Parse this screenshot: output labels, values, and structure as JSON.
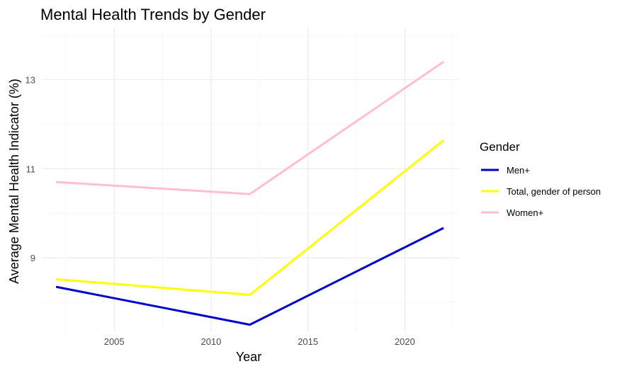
{
  "chart_data": {
    "type": "line",
    "title": "Mental Health Trends by Gender",
    "xlabel": "Year",
    "ylabel": "Average Mental Health Indicator (%)",
    "x": [
      2002,
      2012,
      2022
    ],
    "xlim": [
      2001.3,
      2022.8
    ],
    "ylim": [
      7.35,
      14.15
    ],
    "xticks": [
      2005,
      2010,
      2015,
      2020
    ],
    "yticks": [
      9,
      11,
      13
    ],
    "grid": true,
    "legend": {
      "title": "Gender",
      "position": "right"
    },
    "series": [
      {
        "name": "Men+",
        "color": "#0000cd",
        "values": [
          8.35,
          7.5,
          9.67
        ]
      },
      {
        "name": "Total, gender of person",
        "color": "#ffff00",
        "values": [
          8.52,
          8.17,
          11.64
        ]
      },
      {
        "name": "Women+",
        "color": "#ffc0cb",
        "values": [
          10.7,
          10.43,
          13.4
        ]
      }
    ]
  }
}
